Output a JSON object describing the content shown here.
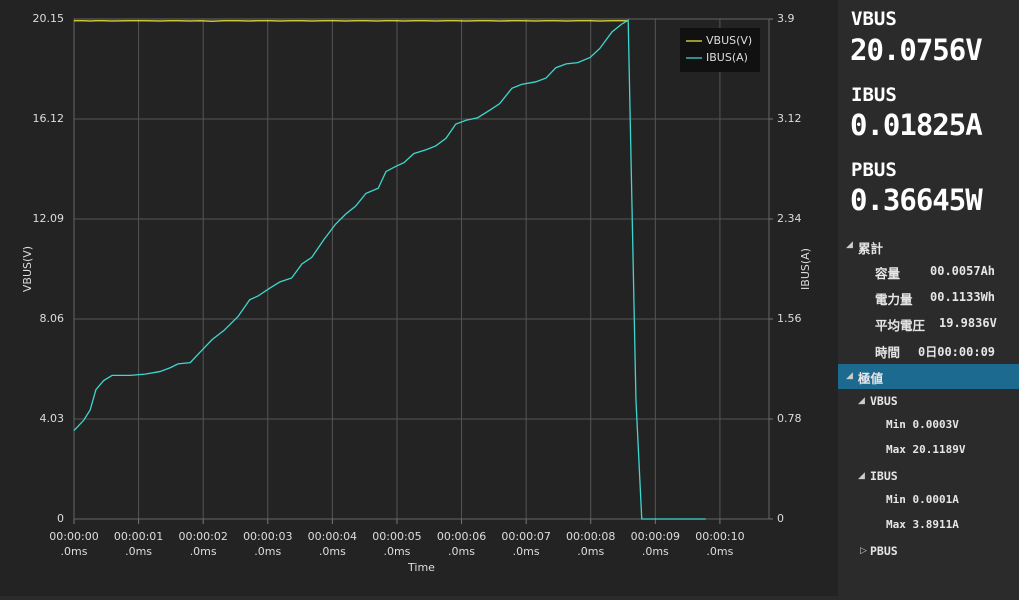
{
  "chart_data": {
    "type": "line",
    "x": [
      0,
      0.15,
      0.25,
      0.34,
      0.46,
      0.59,
      0.87,
      1.1,
      1.33,
      1.49,
      1.61,
      1.8,
      1.95,
      2.14,
      2.32,
      2.54,
      2.72,
      2.85,
      3.03,
      3.19,
      3.37,
      3.53,
      3.68,
      3.87,
      4.05,
      4.21,
      4.36,
      4.52,
      4.71,
      4.83,
      4.98,
      5.11,
      5.26,
      5.45,
      5.6,
      5.76,
      5.91,
      6.07,
      6.25,
      6.44,
      6.59,
      6.78,
      6.93,
      7.15,
      7.31,
      7.46,
      7.62,
      7.8,
      7.99,
      8.14,
      8.33,
      8.48,
      8.58,
      8.7,
      8.79,
      9.78
    ],
    "series": [
      {
        "name": "VBUS(V)",
        "color": "#e8e03a",
        "axis": "y",
        "values": [
          20.08,
          20.08,
          20.07,
          20.08,
          20.08,
          20.07,
          20.08,
          20.08,
          20.07,
          20.08,
          20.08,
          20.07,
          20.08,
          20.06,
          20.08,
          20.08,
          20.07,
          20.08,
          20.08,
          20.07,
          20.08,
          20.08,
          20.07,
          20.08,
          20.08,
          20.07,
          20.08,
          20.08,
          20.07,
          20.08,
          20.08,
          20.07,
          20.08,
          20.08,
          20.07,
          20.08,
          20.08,
          20.07,
          20.08,
          20.08,
          20.07,
          20.08,
          20.08,
          20.07,
          20.08,
          20.08,
          20.07,
          20.08,
          20.08,
          20.07,
          20.08,
          20.08,
          20.08,
          null,
          null,
          null
        ]
      },
      {
        "name": "IBUS(A)",
        "color": "#3fd6cf",
        "axis": "y2",
        "values": [
          0.69,
          0.77,
          0.85,
          1.01,
          1.08,
          1.12,
          1.12,
          1.13,
          1.15,
          1.18,
          1.21,
          1.22,
          1.3,
          1.4,
          1.47,
          1.58,
          1.71,
          1.74,
          1.8,
          1.85,
          1.88,
          1.99,
          2.04,
          2.18,
          2.3,
          2.38,
          2.44,
          2.54,
          2.58,
          2.71,
          2.75,
          2.78,
          2.85,
          2.88,
          2.91,
          2.97,
          3.08,
          3.11,
          3.13,
          3.19,
          3.24,
          3.36,
          3.39,
          3.41,
          3.44,
          3.52,
          3.55,
          3.56,
          3.6,
          3.67,
          3.8,
          3.86,
          3.89,
          0.93,
          0,
          0
        ]
      }
    ],
    "x_label": "Time",
    "y_label": "VBUS(V)",
    "y2_label": "IBUS(A)",
    "xlim": [
      0,
      10.76
    ],
    "xticks": [
      {
        "value": 0,
        "label": "00:00:00\n.0ms"
      },
      {
        "value": 1,
        "label": "00:00:01\n.0ms"
      },
      {
        "value": 2,
        "label": "00:00:02\n.0ms"
      },
      {
        "value": 3,
        "label": "00:00:03\n.0ms"
      },
      {
        "value": 4,
        "label": "00:00:04\n.0ms"
      },
      {
        "value": 5,
        "label": "00:00:05\n.0ms"
      },
      {
        "value": 6,
        "label": "00:00:06\n.0ms"
      },
      {
        "value": 7,
        "label": "00:00:07\n.0ms"
      },
      {
        "value": 8,
        "label": "00:00:08\n.0ms"
      },
      {
        "value": 9,
        "label": "00:00:09\n.0ms"
      },
      {
        "value": 10,
        "label": "00:00:10\n.0ms"
      }
    ],
    "ylim": [
      0,
      20.15
    ],
    "yticks": [
      0,
      4.03,
      8.06,
      12.09,
      16.12,
      20.15
    ],
    "y2lim": [
      0,
      3.9
    ],
    "y2ticks": [
      0,
      0.78,
      1.56,
      2.34,
      3.12,
      3.9
    ],
    "grid": true,
    "legend": "upper right"
  },
  "readings": [
    {
      "label": "VBUS",
      "value": "20.0756V"
    },
    {
      "label": "IBUS",
      "value": "0.01825A"
    },
    {
      "label": "PBUS",
      "value": "0.36645W"
    }
  ],
  "tree": {
    "cumulative": {
      "label": "累計",
      "rows": [
        {
          "label": "容量",
          "value": "00.0057Ah"
        },
        {
          "label": "電力量",
          "value": "00.1133Wh"
        },
        {
          "label": "平均電圧",
          "value": "19.9836V"
        },
        {
          "label": "時間",
          "value": "0日00:00:09"
        }
      ]
    },
    "extremes": {
      "label": "極値",
      "groups": [
        {
          "label": "VBUS",
          "rows": [
            "Min 0.0003V",
            "Max 20.1189V"
          ]
        },
        {
          "label": "IBUS",
          "rows": [
            "Min 0.0001A",
            "Max 3.8911A"
          ]
        },
        {
          "label": "PBUS"
        }
      ]
    }
  }
}
